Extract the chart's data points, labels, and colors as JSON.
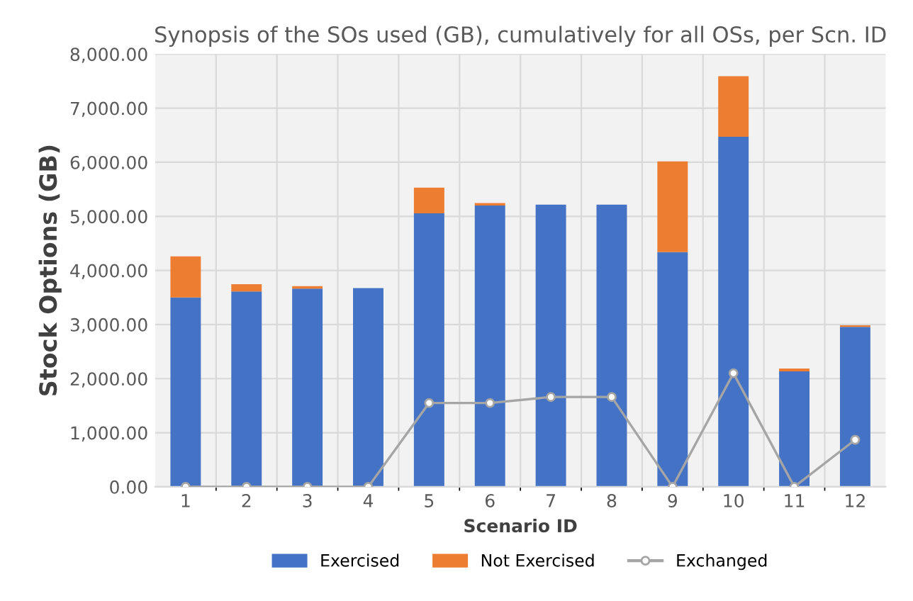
{
  "chart_data": {
    "type": "bar",
    "stacked": true,
    "title": "Synopsis of the SOs used (GB), cumulatively for all OSs, per Scn. ID",
    "xlabel": "Scenario ID",
    "ylabel": "Stock Options (GB)",
    "categories": [
      "1",
      "2",
      "3",
      "4",
      "5",
      "6",
      "7",
      "8",
      "9",
      "10",
      "11",
      "12"
    ],
    "series": [
      {
        "name": "Exercised",
        "color": "#4472c4",
        "values": [
          3500,
          3610,
          3665,
          3675,
          5055,
          5200,
          5215,
          5215,
          4340,
          6470,
          2135,
          2955
        ]
      },
      {
        "name": "Not Exercised",
        "color": "#ed7d31",
        "values": [
          760,
          135,
          45,
          0,
          475,
          45,
          0,
          0,
          1675,
          1120,
          50,
          30
        ]
      },
      {
        "name": "Exchanged",
        "type": "line",
        "color": "#a5a5a5",
        "marker": "circle",
        "values": [
          0,
          0,
          0,
          0,
          1550,
          1550,
          1660,
          1660,
          0,
          2100,
          0,
          870
        ]
      }
    ],
    "ylim": [
      0,
      8000
    ],
    "yticks": [
      {
        "value": 0,
        "label": "0.00"
      },
      {
        "value": 1000,
        "label": "1,000.00"
      },
      {
        "value": 2000,
        "label": "2,000.00"
      },
      {
        "value": 3000,
        "label": "3,000.00"
      },
      {
        "value": 4000,
        "label": "4,000.00"
      },
      {
        "value": 5000,
        "label": "5,000.00"
      },
      {
        "value": 6000,
        "label": "6,000.00"
      },
      {
        "value": 7000,
        "label": "7,000.00"
      },
      {
        "value": 8000,
        "label": "8,000.00"
      }
    ],
    "grid": true,
    "legend": "bottom"
  }
}
